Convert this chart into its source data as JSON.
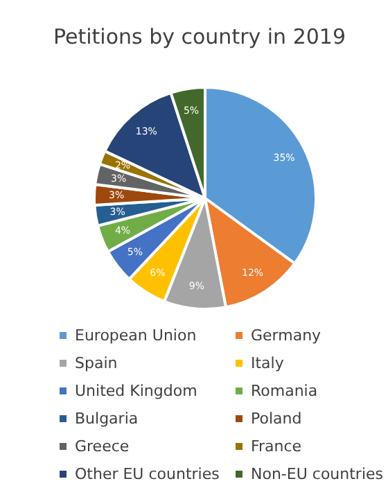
{
  "chart_data": {
    "type": "pie",
    "title": "Petitions by country in 2019",
    "categories": [
      "European Union",
      "Germany",
      "Spain",
      "Italy",
      "United Kingdom",
      "Romania",
      "Bulgaria",
      "Poland",
      "Greece",
      "France",
      "Other EU countries",
      "Non-EU countries"
    ],
    "values": [
      35,
      12,
      9,
      6,
      5,
      4,
      3,
      3,
      3,
      2,
      13,
      5
    ],
    "colors": [
      "#5b9bd5",
      "#ed7d31",
      "#a5a5a5",
      "#ffc000",
      "#4472c4",
      "#70ad47",
      "#255e91",
      "#9e480e",
      "#636363",
      "#997300",
      "#264478",
      "#43682b"
    ],
    "value_labels": [
      "35%",
      "12%",
      "9%",
      "6%",
      "5%",
      "4%",
      "3%",
      "3%",
      "3%",
      "2%",
      "13%",
      "5%"
    ],
    "legend": "bottom"
  }
}
